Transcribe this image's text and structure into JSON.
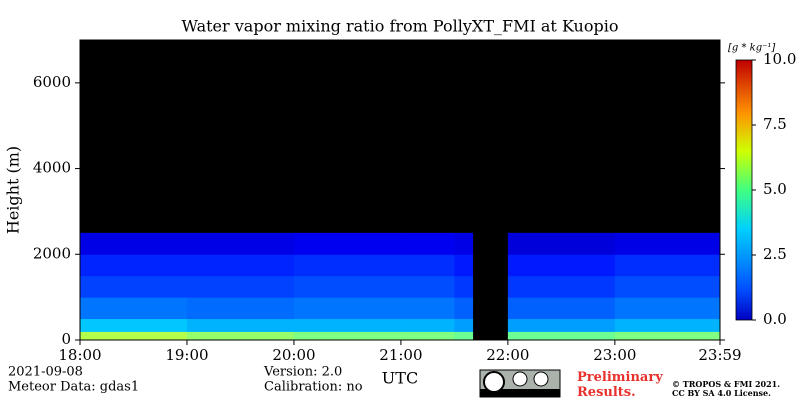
{
  "chart_data": {
    "type": "heatmap",
    "title": "Water vapor mixing ratio from PollyXT_FMI at Kuopio",
    "y_label": "Height (m)",
    "x_label": "UTC",
    "xlim": [
      18,
      23.983
    ],
    "xticks": [
      {
        "value": 18,
        "label": "18:00"
      },
      {
        "value": 19,
        "label": "19:00"
      },
      {
        "value": 20,
        "label": "20:00"
      },
      {
        "value": 21,
        "label": "21:00"
      },
      {
        "value": 22,
        "label": "22:00"
      },
      {
        "value": 23,
        "label": "23:00"
      },
      {
        "value": 23.983,
        "label": "23:59"
      }
    ],
    "ylim": [
      0,
      7000
    ],
    "yticks": [
      0,
      2000,
      4000,
      6000
    ],
    "x_bins": [
      18,
      19,
      20,
      21,
      21.5,
      21.67,
      22,
      23,
      23.983
    ],
    "y_bins": [
      0,
      200,
      500,
      1000,
      1500,
      2000,
      2500
    ],
    "z": [
      [
        5.5,
        5.2,
        5.0,
        5.0,
        4.8,
        null,
        4.8,
        5.0
      ],
      [
        3.2,
        3.0,
        3.0,
        3.0,
        2.8,
        null,
        2.8,
        3.0
      ],
      [
        2.4,
        2.3,
        2.4,
        2.4,
        2.2,
        null,
        2.2,
        2.4
      ],
      [
        1.9,
        1.9,
        2.0,
        2.0,
        1.8,
        null,
        1.8,
        2.0
      ],
      [
        1.6,
        1.6,
        1.7,
        1.7,
        1.5,
        null,
        1.5,
        1.7
      ],
      [
        1.0,
        1.0,
        1.1,
        1.1,
        1.0,
        null,
        0.9,
        1.0
      ]
    ],
    "colorbar_label": "[g * kg⁻¹]",
    "zlim": [
      0,
      10
    ],
    "zticks": [
      {
        "value": 0,
        "label": "0.0"
      },
      {
        "value": 2.5,
        "label": "2.5"
      },
      {
        "value": 5,
        "label": "5.0"
      },
      {
        "value": 7.5,
        "label": "7.5"
      },
      {
        "value": 10,
        "label": "10.0"
      }
    ],
    "date": "2021-09-08",
    "meteor": "Meteor Data: gdas1",
    "version": "Version: 2.0",
    "calibration": "Calibration: no",
    "preliminary": "Preliminary Results.",
    "copyright": "© TROPOS & FMI 2021.",
    "license": "CC BY SA 4.0 License."
  }
}
